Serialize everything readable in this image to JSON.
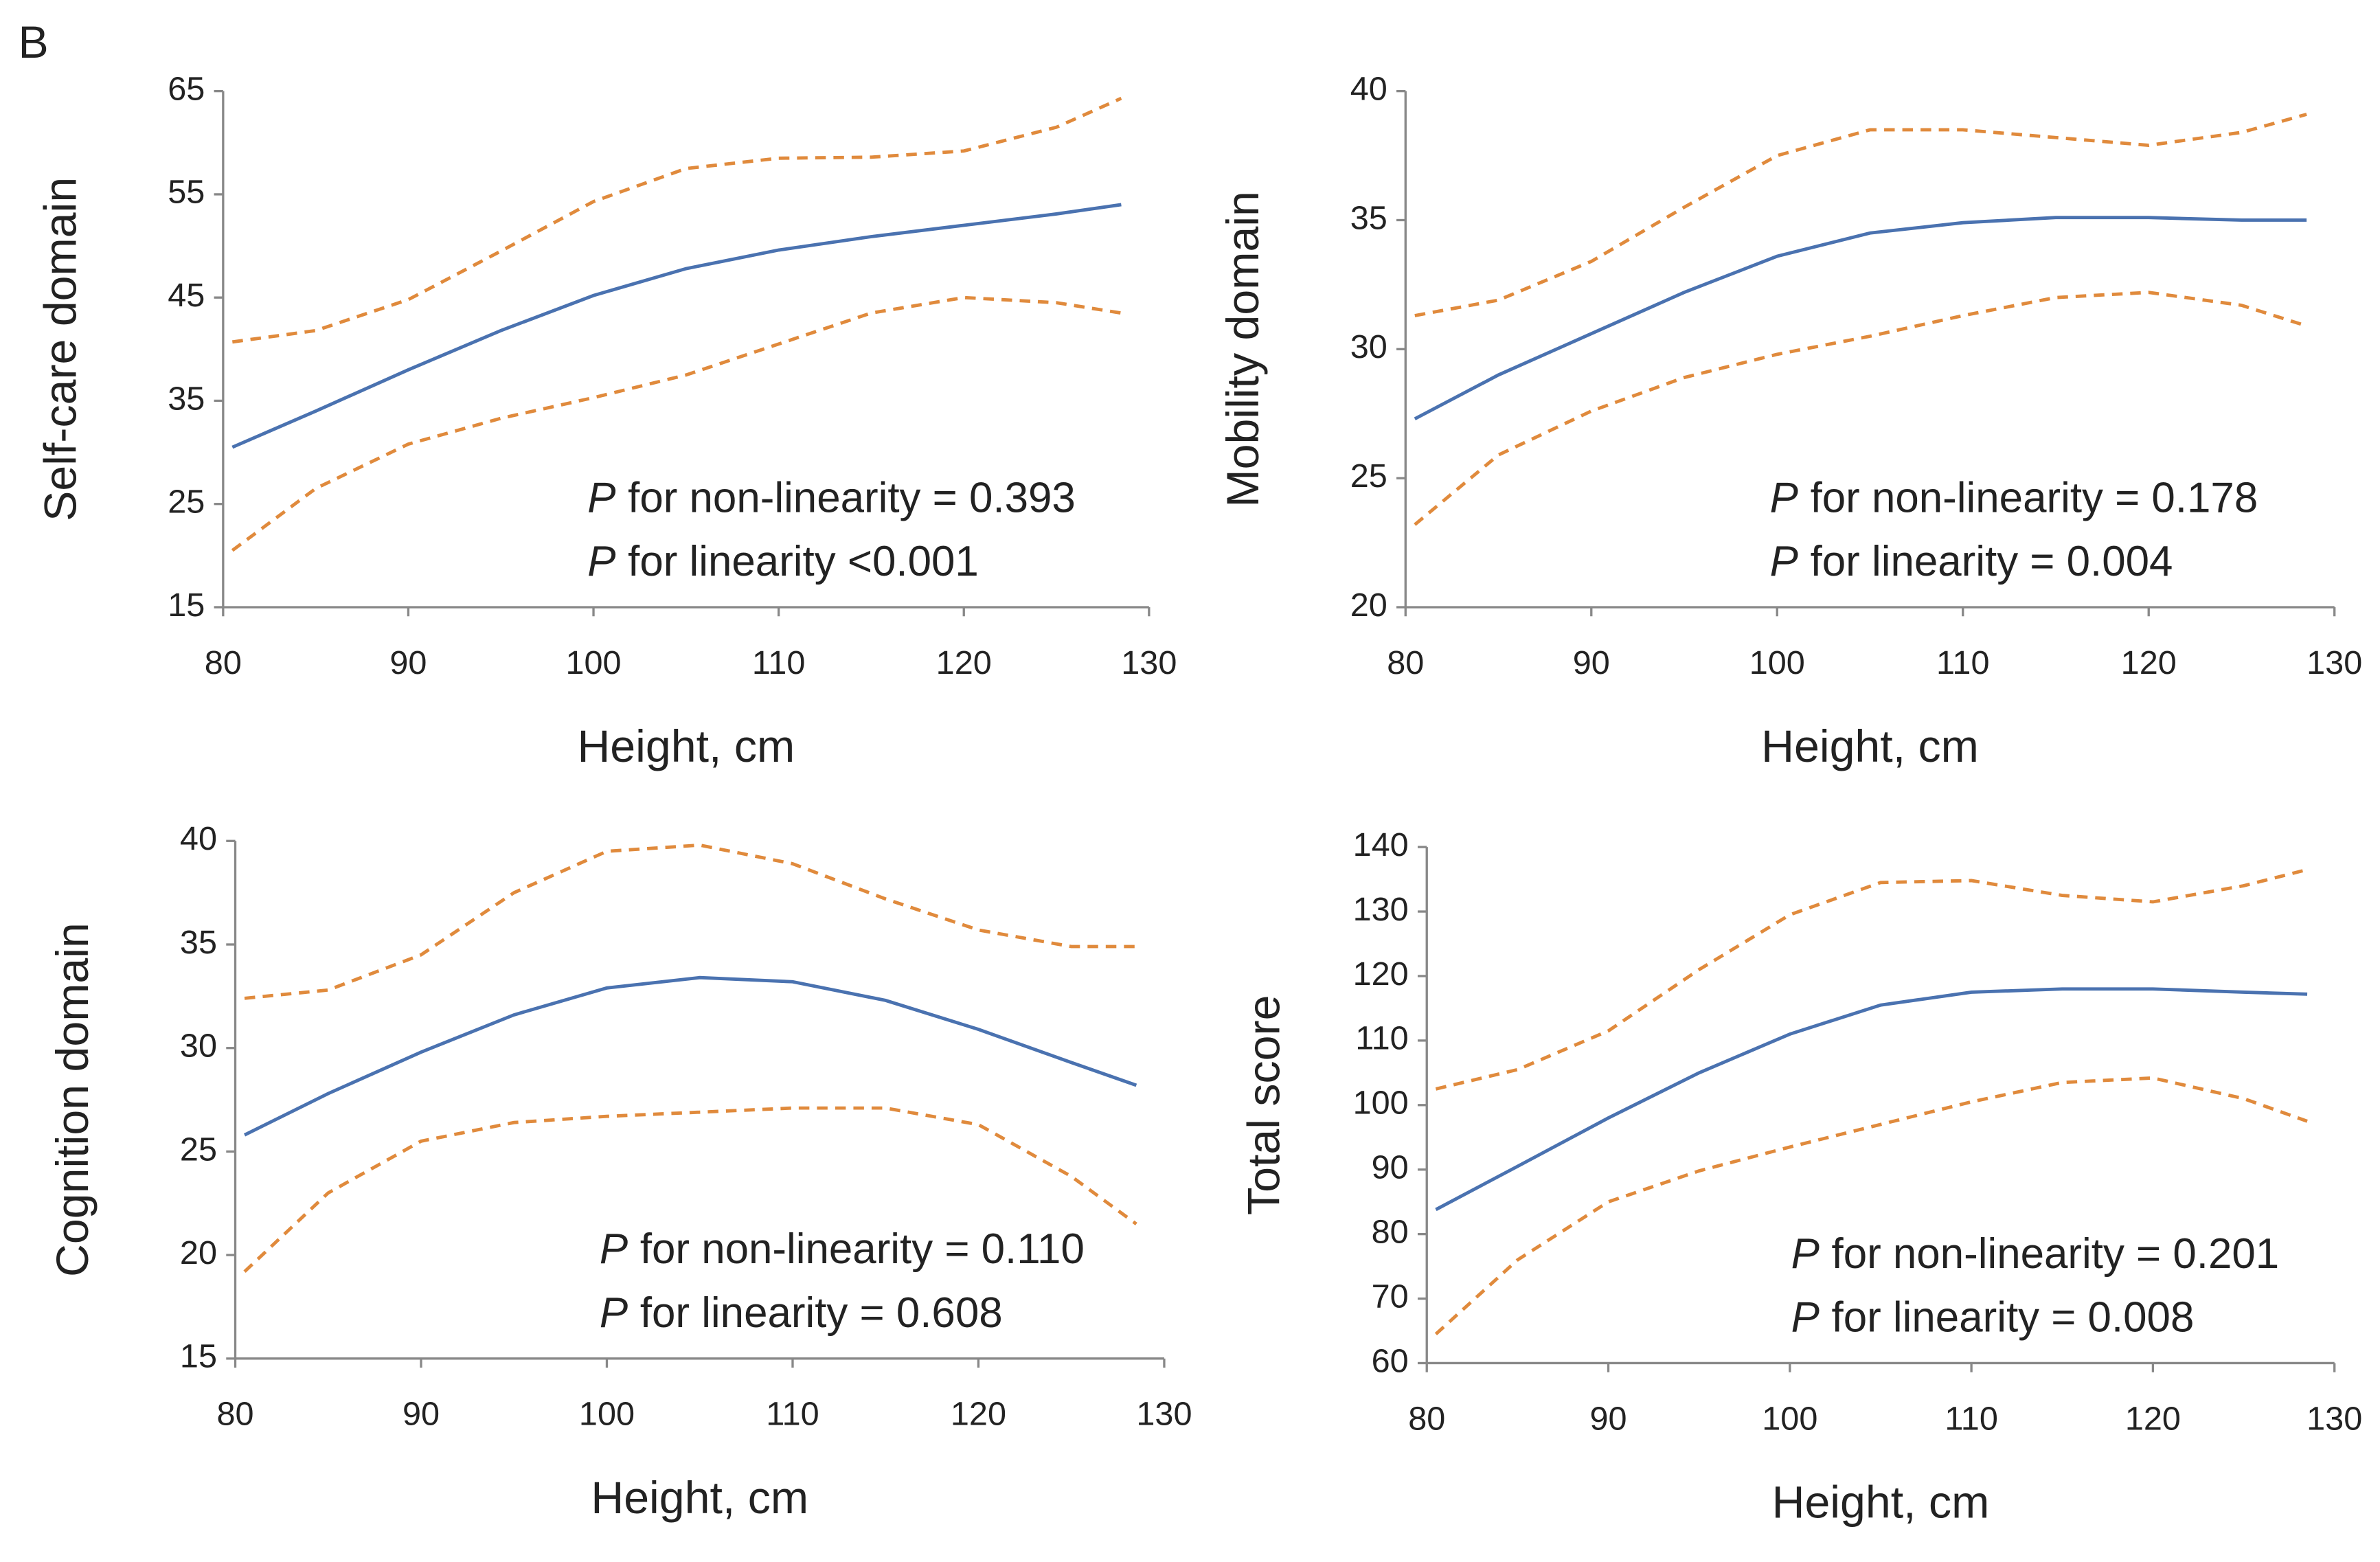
{
  "panel_label": "B",
  "chart_data": [
    {
      "type": "line",
      "xlabel": "Height, cm",
      "ylabel": "Self-care domain",
      "x": [
        80.5,
        85,
        90,
        95,
        100,
        105,
        110,
        115,
        120,
        125,
        128.5
      ],
      "series": [
        {
          "color": "#4a72b0",
          "linestyle": "solid",
          "values": [
            30.5,
            34,
            38,
            41.8,
            45.2,
            47.8,
            49.6,
            50.9,
            52,
            53.1,
            54
          ]
        },
        {
          "color": "#e08a3c",
          "linestyle": "dashed",
          "values": [
            40.7,
            41.8,
            44.8,
            49.5,
            54.3,
            57.5,
            58.5,
            58.6,
            59.2,
            61.5,
            64.3
          ]
        },
        {
          "color": "#e08a3c",
          "linestyle": "dashed",
          "values": [
            20.5,
            26.5,
            30.8,
            33.3,
            35.3,
            37.5,
            40.5,
            43.5,
            45,
            44.5,
            43.5
          ]
        }
      ],
      "xlim": [
        80,
        130
      ],
      "xticks": [
        80,
        90,
        100,
        110,
        120,
        130
      ],
      "ylim": [
        15,
        65
      ],
      "yticks": [
        15,
        25,
        35,
        45,
        55,
        65
      ],
      "annotations": [
        {
          "symbol": "P",
          "text": "for non-linearity = 0.393"
        },
        {
          "symbol": "P",
          "text": "for linearity <0.001"
        }
      ]
    },
    {
      "type": "line",
      "xlabel": "Height, cm",
      "ylabel": "Mobility domain",
      "x": [
        80.5,
        85,
        90,
        95,
        100,
        105,
        110,
        115,
        120,
        125,
        128.5
      ],
      "series": [
        {
          "color": "#4a72b0",
          "linestyle": "solid",
          "values": [
            27.3,
            29,
            30.6,
            32.2,
            33.6,
            34.5,
            34.9,
            35.1,
            35.1,
            35,
            35
          ]
        },
        {
          "color": "#e08a3c",
          "linestyle": "dashed",
          "values": [
            31.3,
            31.9,
            33.4,
            35.5,
            37.5,
            38.5,
            38.5,
            38.2,
            37.9,
            38.4,
            39.1
          ]
        },
        {
          "color": "#e08a3c",
          "linestyle": "dashed",
          "values": [
            23.2,
            25.9,
            27.6,
            28.9,
            29.8,
            30.5,
            31.3,
            32,
            32.2,
            31.7,
            30.9
          ]
        }
      ],
      "xlim": [
        80,
        130
      ],
      "xticks": [
        80,
        90,
        100,
        110,
        120,
        130
      ],
      "ylim": [
        20,
        40
      ],
      "yticks": [
        20,
        25,
        30,
        35,
        40
      ],
      "annotations": [
        {
          "symbol": "P",
          "text": "for non-linearity = 0.178"
        },
        {
          "symbol": "P",
          "text": "for linearity = 0.004"
        }
      ]
    },
    {
      "type": "line",
      "xlabel": "Height, cm",
      "ylabel": "Cognition domain",
      "x": [
        80.5,
        85,
        90,
        95,
        100,
        105,
        110,
        115,
        120,
        125,
        128.5
      ],
      "series": [
        {
          "color": "#4a72b0",
          "linestyle": "solid",
          "values": [
            25.8,
            27.8,
            29.8,
            31.6,
            32.9,
            33.4,
            33.2,
            32.3,
            30.9,
            29.3,
            28.2
          ]
        },
        {
          "color": "#e08a3c",
          "linestyle": "dashed",
          "values": [
            32.4,
            32.8,
            34.5,
            37.5,
            39.5,
            39.8,
            38.9,
            37.2,
            35.7,
            34.9,
            34.9
          ]
        },
        {
          "color": "#e08a3c",
          "linestyle": "dashed",
          "values": [
            19.2,
            23,
            25.5,
            26.4,
            26.7,
            26.9,
            27.1,
            27.1,
            26.3,
            23.8,
            21.5
          ]
        }
      ],
      "xlim": [
        80,
        130
      ],
      "xticks": [
        80,
        90,
        100,
        110,
        120,
        130
      ],
      "ylim": [
        15,
        40
      ],
      "yticks": [
        15,
        20,
        25,
        30,
        35,
        40
      ],
      "annotations": [
        {
          "symbol": "P",
          "text": "for non-linearity = 0.110"
        },
        {
          "symbol": "P",
          "text": "for linearity = 0.608"
        }
      ]
    },
    {
      "type": "line",
      "xlabel": "Height, cm",
      "ylabel": "Total score",
      "x": [
        80.5,
        85,
        90,
        95,
        100,
        105,
        110,
        115,
        120,
        125,
        128.5
      ],
      "series": [
        {
          "color": "#4a72b0",
          "linestyle": "solid",
          "values": [
            83.8,
            90.5,
            98,
            105,
            111,
            115.5,
            117.5,
            118,
            118,
            117.5,
            117.2
          ]
        },
        {
          "color": "#e08a3c",
          "linestyle": "dashed",
          "values": [
            102.5,
            105.5,
            111.5,
            121,
            129.5,
            134.5,
            134.8,
            132.5,
            131.5,
            134,
            136.5
          ]
        },
        {
          "color": "#e08a3c",
          "linestyle": "dashed",
          "values": [
            64.5,
            76,
            85,
            89.8,
            93.5,
            97,
            100.5,
            103.5,
            104.2,
            101,
            97.5
          ]
        }
      ],
      "xlim": [
        80,
        130
      ],
      "xticks": [
        80,
        90,
        100,
        110,
        120,
        130
      ],
      "ylim": [
        60,
        140
      ],
      "yticks": [
        60,
        70,
        80,
        90,
        100,
        110,
        120,
        130,
        140
      ],
      "annotations": [
        {
          "symbol": "P",
          "text": "for non-linearity = 0.201"
        },
        {
          "symbol": "P",
          "text": "for linearity = 0.008"
        }
      ]
    }
  ]
}
